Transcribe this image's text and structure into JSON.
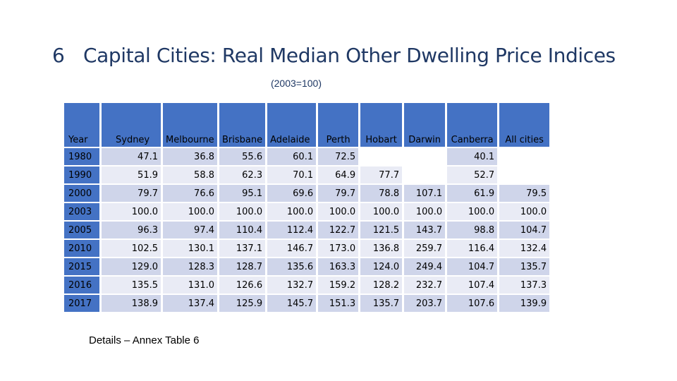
{
  "slide": {
    "number": "6",
    "title": "Capital Cities: Real Median Other Dwelling Price Indices",
    "subtitle": "(2003=100)",
    "footer": "Details – Annex Table 6"
  },
  "table": {
    "headers": [
      "Year",
      "Sydney",
      "Melbourne",
      "Brisbane",
      "Adelaide",
      "Perth",
      "Hobart",
      "Darwin",
      "Canberra",
      "All cities"
    ],
    "rows": [
      [
        "1980",
        "47.1",
        "36.8",
        "55.6",
        "60.1",
        "72.5",
        "",
        "",
        "40.1",
        ""
      ],
      [
        "1990",
        "51.9",
        "58.8",
        "62.3",
        "70.1",
        "64.9",
        "77.7",
        "",
        "52.7",
        ""
      ],
      [
        "2000",
        "79.7",
        "76.6",
        "95.1",
        "69.6",
        "79.7",
        "78.8",
        "107.1",
        "61.9",
        "79.5"
      ],
      [
        "2003",
        "100.0",
        "100.0",
        "100.0",
        "100.0",
        "100.0",
        "100.0",
        "100.0",
        "100.0",
        "100.0"
      ],
      [
        "2005",
        "96.3",
        "97.4",
        "110.4",
        "112.4",
        "122.7",
        "121.5",
        "143.7",
        "98.8",
        "104.7"
      ],
      [
        "2010",
        "102.5",
        "130.1",
        "137.1",
        "146.7",
        "173.0",
        "136.8",
        "259.7",
        "116.4",
        "132.4"
      ],
      [
        "2015",
        "129.0",
        "128.3",
        "128.7",
        "135.6",
        "163.3",
        "124.0",
        "249.4",
        "104.7",
        "135.7"
      ],
      [
        "2016",
        "135.5",
        "131.0",
        "126.6",
        "132.7",
        "159.2",
        "128.2",
        "232.7",
        "107.4",
        "137.3"
      ],
      [
        "2017",
        "138.9",
        "137.4",
        "125.9",
        "145.7",
        "151.3",
        "135.7",
        "203.7",
        "107.6",
        "139.9"
      ]
    ]
  },
  "colors": {
    "header_fill": "#4472c4",
    "row_band_dark": "#cfd5ea",
    "row_band_light": "#e9ebf5",
    "title_text": "#1f3864"
  }
}
